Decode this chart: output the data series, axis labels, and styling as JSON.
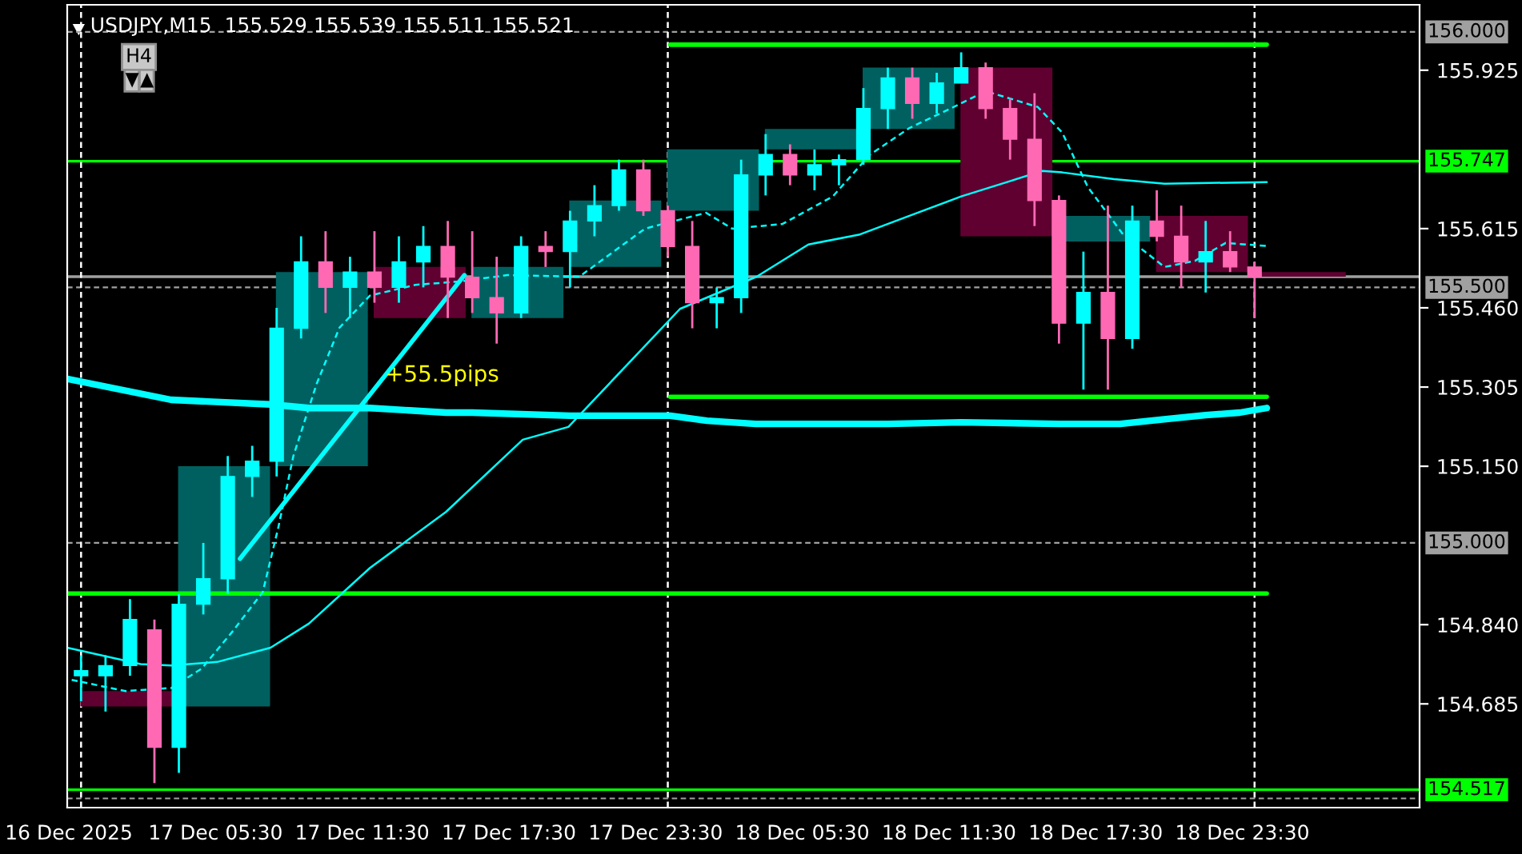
{
  "chart_data": {
    "type": "candlestick",
    "title": "USDJPY,M15  155.529 155.539 155.511 155.521",
    "xlim": [
      "2025-12-16T23:26",
      "2025-12-19T06:45"
    ],
    "xticks": [
      {
        "value": "2025-12-16T23:30",
        "label": "16 Dec 2025"
      },
      {
        "value": "2025-12-17T05:30",
        "label": "17 Dec 05:30"
      },
      {
        "value": "2025-12-17T11:30",
        "label": "17 Dec 11:30"
      },
      {
        "value": "2025-12-17T17:30",
        "label": "17 Dec 17:30"
      },
      {
        "value": "2025-12-17T23:30",
        "label": "17 Dec 23:30"
      },
      {
        "value": "2025-12-18T05:30",
        "label": "18 Dec 05:30"
      },
      {
        "value": "2025-12-18T11:30",
        "label": "18 Dec 11:30"
      },
      {
        "value": "2025-12-18T17:30",
        "label": "18 Dec 17:30"
      },
      {
        "value": "2025-12-18T23:30",
        "label": "18 Dec 23:30"
      }
    ],
    "ylim": [
      154.482,
      156.053
    ],
    "yticks": [
      155.925,
      155.615,
      {
        "value": 155.46,
        "label": "155.460"
      },
      155.305,
      {
        "value": 155.15,
        "label": "155.150"
      },
      {
        "value": 154.84,
        "label": "154.840"
      },
      154.685
    ],
    "series": [
      {
        "type": "candlestick",
        "x": [
          "2025-12-17T01:51",
          "2025-12-17T05:51",
          "2025-12-17T09:51",
          "2025-12-17T13:51",
          "2025-12-17T17:51",
          "2025-12-17T21:51",
          "2025-12-18T01:51",
          "2025-12-18T05:51",
          "2025-12-18T09:51",
          "2025-12-18T13:51",
          "2025-12-18T17:51",
          "2025-12-18T21:51",
          "2025-12-19T01:51"
        ],
        "ohlc": [
          [
            154.71,
            154.71,
            154.68,
            154.68
          ],
          [
            154.68,
            155.15,
            154.68,
            155.15
          ],
          [
            155.15,
            155.53,
            155.15,
            155.53
          ],
          [
            155.54,
            155.54,
            155.44,
            155.44
          ],
          [
            155.44,
            155.54,
            155.44,
            155.54
          ],
          [
            155.54,
            155.67,
            155.54,
            155.67
          ],
          [
            155.65,
            155.77,
            155.65,
            155.77
          ],
          [
            155.77,
            155.81,
            155.77,
            155.81
          ],
          [
            155.81,
            155.93,
            155.81,
            155.93
          ],
          [
            155.93,
            155.93,
            155.6,
            155.6
          ],
          [
            155.59,
            155.64,
            155.59,
            155.64
          ],
          [
            155.64,
            155.64,
            155.53,
            155.53
          ],
          [
            155.53,
            155.53,
            155.521,
            155.521
          ]
        ],
        "colors": [
          "#600030",
          "#006060",
          "#006060",
          "#600030",
          "#006060",
          "#006060",
          "#006060",
          "#006060",
          "#006060",
          "#600030",
          "#006060",
          "#600030",
          "#600030"
        ]
      },
      {
        "type": "line",
        "x": [
          "2025-12-18T00:06",
          "2025-12-19T00:30"
        ],
        "values": [
          155.975,
          155.975
        ],
        "color": "#00ff00",
        "line_style": "solid"
      },
      {
        "type": "line",
        "x": [
          "2025-12-18T00:06",
          "2025-12-19T00:30"
        ],
        "values": [
          155.286,
          155.286
        ],
        "color": "#00ff00",
        "line_style": "solid"
      },
      {
        "type": "line",
        "x": [
          "2025-12-16T23:26",
          "2025-12-19T00:30"
        ],
        "values": [
          154.901,
          154.901
        ],
        "color": "#00ff00",
        "line_style": "solid"
      },
      {
        "type": "line",
        "x": [
          "2025-12-16T23:26",
          "2025-12-17T03:41",
          "2025-12-17T07:45",
          "2025-12-17T09:19",
          "2025-12-17T11:49",
          "2025-12-17T14:56",
          "2025-12-17T16:00",
          "2025-12-17T20:00",
          "2025-12-18T00:06",
          "2025-12-18T01:36",
          "2025-12-18T03:36",
          "2025-12-18T06:00",
          "2025-12-18T09:00",
          "2025-12-18T12:00",
          "2025-12-18T16:00",
          "2025-12-18T18:30",
          "2025-12-18T20:18",
          "2025-12-18T22:00",
          "2025-12-18T23:24",
          "2025-12-19T00:30"
        ],
        "values": [
          155.321,
          155.28,
          155.271,
          155.264,
          155.264,
          155.255,
          155.255,
          155.249,
          155.249,
          155.239,
          155.233,
          155.233,
          155.233,
          155.236,
          155.233,
          155.233,
          155.242,
          155.25,
          155.255,
          155.264
        ],
        "color": "#00ffff",
        "line_style": "solid"
      },
      {
        "type": "line",
        "x": [
          "2025-12-16T23:26",
          "2025-12-17T02:26",
          "2025-12-17T03:41",
          "2025-12-17T05:34",
          "2025-12-17T07:45",
          "2025-12-17T09:19",
          "2025-12-17T11:49",
          "2025-12-17T14:56",
          "2025-12-17T18:04",
          "2025-12-17T19:56",
          "2025-12-18T00:30",
          "2025-12-18T03:38",
          "2025-12-18T05:45",
          "2025-12-18T07:49",
          "2025-12-18T09:53",
          "2025-12-18T12:00",
          "2025-12-18T14:04",
          "2025-12-18T15:19",
          "2025-12-18T16:08",
          "2025-12-18T18:15",
          "2025-12-18T20:19",
          "2025-12-19T00:30"
        ],
        "values": [
          154.795,
          154.763,
          154.76,
          154.767,
          154.795,
          154.842,
          154.951,
          155.061,
          155.202,
          155.227,
          155.458,
          155.521,
          155.584,
          155.603,
          155.64,
          155.678,
          155.709,
          155.728,
          155.725,
          155.712,
          155.703,
          155.706
        ],
        "color": "#00ffff",
        "line_style": "solid"
      },
      {
        "type": "line",
        "x": [
          "2025-12-16T23:37",
          "2025-12-17T01:49",
          "2025-12-17T03:41",
          "2025-12-17T04:56",
          "2025-12-17T06:11",
          "2025-12-17T07:26",
          "2025-12-17T08:04",
          "2025-12-17T08:41",
          "2025-12-17T09:38",
          "2025-12-17T10:34",
          "2025-12-17T11:49",
          "2025-12-17T13:41",
          "2025-12-17T15:34",
          "2025-12-17T17:26",
          "2025-12-17T20:23",
          "2025-12-17T23:04",
          "2025-12-18T01:34",
          "2025-12-18T02:38",
          "2025-12-18T04:41",
          "2025-12-18T06:45",
          "2025-12-18T08:15",
          "2025-12-18T09:53",
          "2025-12-18T11:34",
          "2025-12-18T13:00",
          "2025-12-18T15:08",
          "2025-12-18T16:08",
          "2025-12-18T17:11",
          "2025-12-18T18:38",
          "2025-12-18T20:19",
          "2025-12-18T21:34",
          "2025-12-18T22:49",
          "2025-12-19T00:30"
        ],
        "values": [
          154.732,
          154.71,
          154.716,
          154.754,
          154.826,
          154.904,
          155.03,
          155.17,
          155.311,
          155.421,
          155.484,
          155.505,
          155.512,
          155.524,
          155.521,
          155.615,
          155.646,
          155.615,
          155.624,
          155.678,
          155.759,
          155.812,
          155.85,
          155.884,
          155.853,
          155.803,
          155.696,
          155.603,
          155.54,
          155.552,
          155.587,
          155.581
        ],
        "color": "#00ffff",
        "line_style": "dashed"
      },
      {
        "type": "line",
        "x": [
          "2025-12-17T06:30",
          "2025-12-17T15:41"
        ],
        "values": [
          154.969,
          155.524
        ],
        "color": "#00ffff",
        "line_style": "solid"
      },
      {
        "x": [
          "2025-12-17T00:00",
          "2025-12-17T01:00",
          "2025-12-17T02:00",
          "2025-12-17T03:00",
          "2025-12-17T04:00",
          "2025-12-17T05:00",
          "2025-12-17T06:00",
          "2025-12-17T07:00",
          "2025-12-17T08:00",
          "2025-12-17T09:00",
          "2025-12-17T10:00",
          "2025-12-17T11:00",
          "2025-12-17T12:00",
          "2025-12-17T13:00",
          "2025-12-17T14:00",
          "2025-12-17T15:00",
          "2025-12-17T16:00",
          "2025-12-17T17:00",
          "2025-12-17T18:00",
          "2025-12-17T19:00",
          "2025-12-17T20:00",
          "2025-12-17T21:00",
          "2025-12-17T22:00",
          "2025-12-17T23:00",
          "2025-12-18T00:00",
          "2025-12-18T01:00",
          "2025-12-18T02:00",
          "2025-12-18T03:00",
          "2025-12-18T04:00",
          "2025-12-18T05:00",
          "2025-12-18T06:00",
          "2025-12-18T07:00",
          "2025-12-18T08:00",
          "2025-12-18T09:00",
          "2025-12-18T10:00",
          "2025-12-18T11:00",
          "2025-12-18T12:00",
          "2025-12-18T13:00",
          "2025-12-18T14:00",
          "2025-12-18T15:00",
          "2025-12-18T16:00",
          "2025-12-18T17:00",
          "2025-12-18T18:00",
          "2025-12-18T19:00",
          "2025-12-18T20:00",
          "2025-12-18T21:00",
          "2025-12-18T22:00",
          "2025-12-18T23:00",
          "2025-12-19T00:00"
        ],
        "ohlc": [
          [
            154.74,
            154.78,
            154.69,
            154.75
          ],
          [
            154.74,
            154.78,
            154.67,
            154.76
          ],
          [
            154.76,
            154.89,
            154.74,
            154.85
          ],
          [
            154.83,
            154.85,
            154.53,
            154.6
          ],
          [
            154.6,
            154.9,
            154.55,
            154.88
          ],
          [
            154.88,
            155.0,
            154.86,
            154.93
          ],
          [
            154.93,
            155.17,
            154.9,
            155.13
          ],
          [
            155.13,
            155.19,
            155.09,
            155.16
          ],
          [
            155.16,
            155.46,
            155.13,
            155.42
          ],
          [
            155.42,
            155.6,
            155.4,
            155.55
          ],
          [
            155.55,
            155.61,
            155.45,
            155.5
          ],
          [
            155.5,
            155.56,
            155.44,
            155.53
          ],
          [
            155.53,
            155.61,
            155.47,
            155.5
          ],
          [
            155.5,
            155.6,
            155.47,
            155.55
          ],
          [
            155.55,
            155.62,
            155.5,
            155.58
          ],
          [
            155.58,
            155.63,
            155.44,
            155.52
          ],
          [
            155.52,
            155.61,
            155.45,
            155.48
          ],
          [
            155.48,
            155.56,
            155.39,
            155.45
          ],
          [
            155.45,
            155.6,
            155.44,
            155.58
          ],
          [
            155.58,
            155.61,
            155.54,
            155.57
          ],
          [
            155.57,
            155.65,
            155.5,
            155.63
          ],
          [
            155.63,
            155.7,
            155.6,
            155.66
          ],
          [
            155.66,
            155.75,
            155.65,
            155.73
          ],
          [
            155.73,
            155.75,
            155.64,
            155.65
          ],
          [
            155.65,
            155.66,
            155.56,
            155.58
          ],
          [
            155.58,
            155.63,
            155.42,
            155.47
          ],
          [
            155.47,
            155.5,
            155.42,
            155.48
          ],
          [
            155.48,
            155.75,
            155.45,
            155.72
          ],
          [
            155.72,
            155.8,
            155.68,
            155.76
          ],
          [
            155.76,
            155.78,
            155.7,
            155.72
          ],
          [
            155.72,
            155.77,
            155.69,
            155.74
          ],
          [
            155.74,
            155.76,
            155.7,
            155.75
          ],
          [
            155.75,
            155.89,
            155.74,
            155.85
          ],
          [
            155.85,
            155.93,
            155.81,
            155.91
          ],
          [
            155.91,
            155.93,
            155.83,
            155.86
          ],
          [
            155.86,
            155.92,
            155.84,
            155.9
          ],
          [
            155.9,
            155.96,
            155.9,
            155.93
          ],
          [
            155.93,
            155.94,
            155.83,
            155.85
          ],
          [
            155.85,
            155.87,
            155.75,
            155.79
          ],
          [
            155.79,
            155.88,
            155.62,
            155.67
          ],
          [
            155.67,
            155.68,
            155.39,
            155.43
          ],
          [
            155.43,
            155.57,
            155.3,
            155.49
          ],
          [
            155.49,
            155.66,
            155.3,
            155.4
          ],
          [
            155.4,
            155.66,
            155.38,
            155.63
          ],
          [
            155.63,
            155.69,
            155.59,
            155.6
          ],
          [
            155.6,
            155.66,
            155.5,
            155.55
          ],
          [
            155.55,
            155.63,
            155.49,
            155.57
          ],
          [
            155.57,
            155.61,
            155.53,
            155.54
          ],
          [
            155.54,
            155.55,
            155.44,
            155.521
          ]
        ],
        "colors": [
          "#00ffff",
          "#00ffff",
          "#00ffff",
          "#ff69b4",
          "#00ffff",
          "#00ffff",
          "#00ffff",
          "#00ffff",
          "#00ffff",
          "#00ffff",
          "#ff69b4",
          "#00ffff",
          "#ff69b4",
          "#00ffff",
          "#00ffff",
          "#ff69b4",
          "#ff69b4",
          "#ff69b4",
          "#00ffff",
          "#ff69b4",
          "#00ffff",
          "#00ffff",
          "#00ffff",
          "#ff69b4",
          "#ff69b4",
          "#ff69b4",
          "#00ffff",
          "#00ffff",
          "#00ffff",
          "#ff69b4",
          "#00ffff",
          "#00ffff",
          "#00ffff",
          "#00ffff",
          "#ff69b4",
          "#00ffff",
          "#00ffff",
          "#ff69b4",
          "#ff69b4",
          "#ff69b4",
          "#ff69b4",
          "#00ffff",
          "#ff69b4",
          "#00ffff",
          "#ff69b4",
          "#ff69b4",
          "#00ffff",
          "#ff69b4",
          "#ff69b4"
        ]
      }
    ],
    "ref_lines": [
      {
        "axis": "y",
        "value": 156.0,
        "label": "156.000",
        "color": "#a0a0a0",
        "line_style": "dashed"
      },
      {
        "axis": "y",
        "value": 155.747,
        "label": "155.747",
        "color": "#00ff00",
        "line_style": "solid"
      },
      {
        "axis": "y",
        "value": 155.521,
        "label": null,
        "color": "#a0a0a0",
        "line_style": "solid"
      },
      {
        "axis": "y",
        "value": 155.5,
        "label": "155.500",
        "color": "#a0a0a0",
        "line_style": "dashed"
      },
      {
        "axis": "y",
        "value": 155.0,
        "label": "155.000",
        "color": "#a0a0a0",
        "line_style": "dashed"
      },
      {
        "axis": "y",
        "value": 154.517,
        "label": "154.517",
        "color": "#00ff00",
        "line_style": "solid"
      },
      {
        "axis": "y",
        "value": 154.5,
        "label": null,
        "color": "#a0a0a0",
        "line_style": "dashed"
      },
      {
        "axis": "x",
        "value": "2025-12-17T00:00",
        "label": null,
        "color": "#ffffff",
        "line_style": "dashed"
      },
      {
        "axis": "x",
        "value": "2025-12-18T00:00",
        "label": null,
        "color": "#ffffff",
        "line_style": "dashed"
      },
      {
        "axis": "x",
        "value": "2025-12-19T00:00",
        "label": null,
        "color": "#ffffff",
        "line_style": "dashed"
      }
    ],
    "annotations": [
      "+55.5pips",
      "H4"
    ]
  }
}
